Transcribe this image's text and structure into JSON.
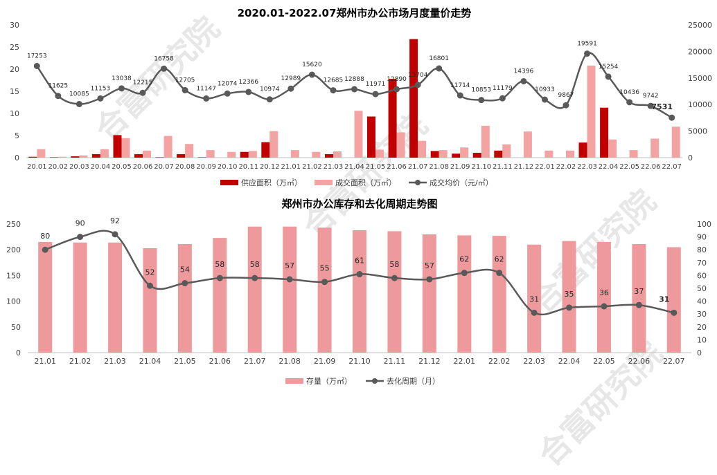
{
  "watermark": "合富研究院",
  "colors": {
    "supply": "#c00000",
    "deal": "#f4a3a3",
    "line": "#595959",
    "stock": "#ee9a9c",
    "axis": "#bfbfbf",
    "text": "#404040"
  },
  "chart_data": [
    {
      "type": "bar+line",
      "title": "2020.01-2022.07郑州市办公市场月度量价走势",
      "categories": [
        "20.01",
        "20.02",
        "20.03",
        "20.04",
        "20.05",
        "20.06",
        "20.07",
        "20.08",
        "20.09",
        "20.10",
        "20.11",
        "20.12",
        "21.01",
        "21.02",
        "21.03",
        "21.04",
        "21.05",
        "21.06",
        "21.07",
        "21.08",
        "21.09",
        "21.10",
        "21.11",
        "21.12",
        "22.01",
        "22.02",
        "22.03",
        "22.04",
        "22.05",
        "22.06",
        "22.07"
      ],
      "series": [
        {
          "name": "供应面积（万㎡）",
          "kind": "bar",
          "axis": "left",
          "values": [
            0.2,
            0.1,
            0.3,
            0.8,
            5.1,
            0.8,
            0.1,
            0.8,
            0.1,
            0,
            1.3,
            3.5,
            0,
            0,
            0.8,
            0,
            9.3,
            17.8,
            26.8,
            1.5,
            0.9,
            1.1,
            1.6,
            0,
            0,
            0,
            3.4,
            11.3,
            0,
            0,
            0
          ]
        },
        {
          "name": "成交面积（万㎡）",
          "kind": "bar",
          "axis": "left",
          "values": [
            1.9,
            0.2,
            0.5,
            1.9,
            4.4,
            1.6,
            4.9,
            3.1,
            1.7,
            1.3,
            1.5,
            6.0,
            1.7,
            1.3,
            1.4,
            10.6,
            1.8,
            5.7,
            3.8,
            1.7,
            2.3,
            7.2,
            3.0,
            5.9,
            1.6,
            1.6,
            20.8,
            4.1,
            1.7,
            4.3,
            7.0
          ]
        },
        {
          "name": "成交均价（元/㎡）",
          "kind": "line",
          "axis": "right",
          "values": [
            17253,
            11625,
            10085,
            11153,
            13038,
            12215,
            16758,
            12705,
            11147,
            12074,
            12366,
            10974,
            12989,
            15620,
            12685,
            12888,
            11971,
            12890,
            13704,
            16801,
            11714,
            10853,
            11179,
            14396,
            10933,
            9867,
            19591,
            15254,
            10436,
            9742,
            7531
          ]
        }
      ],
      "ylim_left": [
        0,
        30
      ],
      "yticks_left": [
        0,
        5,
        10,
        15,
        20,
        25,
        30
      ],
      "ylim_right": [
        0,
        25000
      ],
      "yticks_right": [
        0,
        5000,
        10000,
        15000,
        20000,
        25000
      ],
      "last_label_bold": "7531"
    },
    {
      "type": "bar+line",
      "title": "郑州市办公库存和去化周期走势图",
      "categories": [
        "21.01",
        "21.02",
        "21.03",
        "21.04",
        "21.05",
        "21.06",
        "21.07",
        "21.08",
        "21.09",
        "21.10",
        "21.11",
        "21.12",
        "22.01",
        "22.02",
        "22.03",
        "22.04",
        "22.05",
        "22.06",
        "22.07"
      ],
      "series": [
        {
          "name": "存量（万㎡）",
          "kind": "bar",
          "axis": "left",
          "values": [
            215,
            214,
            214,
            203,
            211,
            223,
            245,
            245,
            243,
            238,
            236,
            230,
            228,
            227,
            210,
            217,
            215,
            211,
            205
          ]
        },
        {
          "name": "去化周期（月）",
          "kind": "line",
          "axis": "right",
          "values": [
            80,
            90,
            92,
            52,
            54,
            58,
            58,
            57,
            55,
            61,
            58,
            57,
            62,
            62,
            31,
            35,
            36,
            37,
            31
          ]
        }
      ],
      "ylim_left": [
        0,
        250
      ],
      "yticks_left": [
        0,
        50,
        100,
        150,
        200,
        250
      ],
      "ylim_right": [
        0,
        100
      ],
      "yticks_right": [
        0,
        10,
        20,
        30,
        40,
        50,
        60,
        70,
        80,
        90,
        100
      ],
      "last_label_bold": "31"
    }
  ]
}
